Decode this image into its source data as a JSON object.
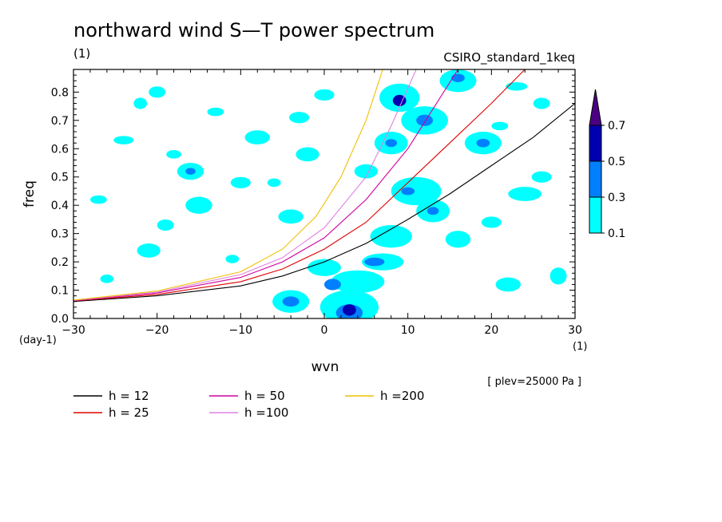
{
  "title": "northward wind S—T power spectrum",
  "subtitle_left": "(1)",
  "subtitle_right": "CSIRO_standard_1keq",
  "annotation": "[ plev=25000 Pa ]",
  "chart_data": {
    "type": "heatmap",
    "title": "northward wind S—T power spectrum",
    "xlabel": "wvn",
    "ylabel": "freq",
    "x_unit": "(1)",
    "y_unit": "(day-1)",
    "xlim": [
      -30,
      30
    ],
    "ylim": [
      0,
      0.88
    ],
    "x_ticks": [
      "-30",
      "-20",
      "-10",
      "0",
      "10",
      "20",
      "30"
    ],
    "y_ticks": [
      "0.0",
      "0.1",
      "0.2",
      "0.3",
      "0.4",
      "0.5",
      "0.6",
      "0.7",
      "0.8"
    ],
    "colorbar": {
      "levels": [
        "0.1",
        "0.3",
        "0.5",
        "0.7"
      ],
      "colors": [
        "#00ffff",
        "#0080ff",
        "#0000b0",
        "#4b0082"
      ]
    },
    "series": [
      {
        "name": "h = 12",
        "color": "#000000",
        "x": [
          -30,
          -20,
          -10,
          -5,
          0,
          5,
          10,
          15,
          20,
          25,
          30
        ],
        "y": [
          0.06,
          0.08,
          0.115,
          0.15,
          0.2,
          0.265,
          0.35,
          0.44,
          0.54,
          0.64,
          0.76
        ]
      },
      {
        "name": "h = 25",
        "color": "#e00000",
        "x": [
          -30,
          -20,
          -10,
          -5,
          0,
          5,
          10,
          15,
          20,
          24
        ],
        "y": [
          0.062,
          0.085,
          0.13,
          0.175,
          0.245,
          0.34,
          0.48,
          0.62,
          0.76,
          0.88
        ]
      },
      {
        "name": "h = 50",
        "color": "#d000a0",
        "x": [
          -30,
          -20,
          -10,
          -5,
          0,
          5,
          10,
          13,
          16
        ],
        "y": [
          0.063,
          0.09,
          0.145,
          0.2,
          0.285,
          0.42,
          0.6,
          0.74,
          0.88
        ]
      },
      {
        "name": "h =100",
        "color": "#e080e0",
        "x": [
          -30,
          -20,
          -10,
          -5,
          0,
          5,
          8,
          11
        ],
        "y": [
          0.064,
          0.093,
          0.155,
          0.215,
          0.32,
          0.5,
          0.68,
          0.88
        ]
      },
      {
        "name": "h =200",
        "color": "#f0c000",
        "x": [
          -30,
          -20,
          -10,
          -5,
          -1,
          2,
          5,
          7
        ],
        "y": [
          0.065,
          0.097,
          0.165,
          0.245,
          0.36,
          0.5,
          0.7,
          0.88
        ]
      }
    ],
    "contours": [
      {
        "level": 1,
        "x": 3,
        "y": 0.02,
        "rx": 1.6,
        "ry": 0.03
      },
      {
        "level": 1,
        "x": -4,
        "y": 0.06,
        "rx": 1.0,
        "ry": 0.018
      },
      {
        "level": 1,
        "x": 1,
        "y": 0.12,
        "rx": 1.0,
        "ry": 0.02
      },
      {
        "level": 1,
        "x": 6,
        "y": 0.2,
        "rx": 1.2,
        "ry": 0.015
      },
      {
        "level": 1,
        "x": 12,
        "y": 0.7,
        "rx": 1.0,
        "ry": 0.02
      },
      {
        "level": 1,
        "x": 19,
        "y": 0.62,
        "rx": 0.8,
        "ry": 0.015
      },
      {
        "level": 1,
        "x": -16,
        "y": 0.52,
        "rx": 0.6,
        "ry": 0.012
      },
      {
        "level": 1,
        "x": 10,
        "y": 0.45,
        "rx": 0.8,
        "ry": 0.014
      },
      {
        "level": 1,
        "x": 13,
        "y": 0.38,
        "rx": 0.7,
        "ry": 0.014
      },
      {
        "level": 1,
        "x": 8,
        "y": 0.62,
        "rx": 0.7,
        "ry": 0.014
      },
      {
        "level": 1,
        "x": 16,
        "y": 0.85,
        "rx": 0.8,
        "ry": 0.015
      },
      {
        "level": 2,
        "x": 3,
        "y": 0.03,
        "rx": 0.8,
        "ry": 0.02
      },
      {
        "level": 2,
        "x": 9,
        "y": 0.77,
        "rx": 0.8,
        "ry": 0.02
      },
      {
        "level": 0,
        "x": 3,
        "y": 0.04,
        "rx": 3.5,
        "ry": 0.06
      },
      {
        "level": 0,
        "x": -4,
        "y": 0.06,
        "rx": 2.2,
        "ry": 0.04
      },
      {
        "level": 0,
        "x": 4,
        "y": 0.13,
        "rx": 3.2,
        "ry": 0.04
      },
      {
        "level": 0,
        "x": 0,
        "y": 0.18,
        "rx": 2.0,
        "ry": 0.03
      },
      {
        "level": 0,
        "x": 7,
        "y": 0.2,
        "rx": 2.5,
        "ry": 0.03
      },
      {
        "level": 0,
        "x": 8,
        "y": 0.29,
        "rx": 2.5,
        "ry": 0.04
      },
      {
        "level": 0,
        "x": 11,
        "y": 0.45,
        "rx": 3.0,
        "ry": 0.05
      },
      {
        "level": 0,
        "x": 12,
        "y": 0.7,
        "rx": 2.8,
        "ry": 0.05
      },
      {
        "level": 0,
        "x": 9,
        "y": 0.78,
        "rx": 2.4,
        "ry": 0.05
      },
      {
        "level": 0,
        "x": 19,
        "y": 0.62,
        "rx": 2.2,
        "ry": 0.04
      },
      {
        "level": 0,
        "x": 16,
        "y": 0.84,
        "rx": 2.2,
        "ry": 0.04
      },
      {
        "level": 0,
        "x": 13,
        "y": 0.38,
        "rx": 2.0,
        "ry": 0.04
      },
      {
        "level": 0,
        "x": 8,
        "y": 0.62,
        "rx": 2.0,
        "ry": 0.04
      },
      {
        "level": 0,
        "x": -16,
        "y": 0.52,
        "rx": 1.6,
        "ry": 0.03
      },
      {
        "level": 0,
        "x": -15,
        "y": 0.4,
        "rx": 1.6,
        "ry": 0.03
      },
      {
        "level": 0,
        "x": -8,
        "y": 0.64,
        "rx": 1.5,
        "ry": 0.025
      },
      {
        "level": 0,
        "x": -4,
        "y": 0.36,
        "rx": 1.5,
        "ry": 0.025
      },
      {
        "level": 0,
        "x": 24,
        "y": 0.44,
        "rx": 2.0,
        "ry": 0.025
      },
      {
        "level": 0,
        "x": 22,
        "y": 0.12,
        "rx": 1.5,
        "ry": 0.025
      },
      {
        "level": 0,
        "x": 26,
        "y": 0.5,
        "rx": 1.2,
        "ry": 0.02
      },
      {
        "level": 0,
        "x": -21,
        "y": 0.24,
        "rx": 1.4,
        "ry": 0.025
      },
      {
        "level": 0,
        "x": -19,
        "y": 0.33,
        "rx": 1.0,
        "ry": 0.02
      },
      {
        "level": 0,
        "x": -24,
        "y": 0.63,
        "rx": 1.2,
        "ry": 0.015
      },
      {
        "level": 0,
        "x": -22,
        "y": 0.76,
        "rx": 0.8,
        "ry": 0.02
      },
      {
        "level": 0,
        "x": -20,
        "y": 0.8,
        "rx": 1.0,
        "ry": 0.02
      },
      {
        "level": 0,
        "x": -10,
        "y": 0.48,
        "rx": 1.2,
        "ry": 0.02
      },
      {
        "level": 0,
        "x": -3,
        "y": 0.71,
        "rx": 1.2,
        "ry": 0.02
      },
      {
        "level": 0,
        "x": 0,
        "y": 0.79,
        "rx": 1.2,
        "ry": 0.02
      },
      {
        "level": 0,
        "x": -13,
        "y": 0.73,
        "rx": 1.0,
        "ry": 0.015
      },
      {
        "level": 0,
        "x": -27,
        "y": 0.42,
        "rx": 1.0,
        "ry": 0.015
      },
      {
        "level": 0,
        "x": 16,
        "y": 0.28,
        "rx": 1.5,
        "ry": 0.03
      },
      {
        "level": 0,
        "x": 20,
        "y": 0.34,
        "rx": 1.2,
        "ry": 0.02
      },
      {
        "level": 0,
        "x": 28,
        "y": 0.15,
        "rx": 1.0,
        "ry": 0.03
      },
      {
        "level": 0,
        "x": 26,
        "y": 0.76,
        "rx": 1.0,
        "ry": 0.02
      },
      {
        "level": 0,
        "x": 23,
        "y": 0.82,
        "rx": 1.3,
        "ry": 0.015
      },
      {
        "level": 0,
        "x": -2,
        "y": 0.58,
        "rx": 1.4,
        "ry": 0.025
      },
      {
        "level": 0,
        "x": 5,
        "y": 0.52,
        "rx": 1.4,
        "ry": 0.025
      },
      {
        "level": 0,
        "x": -26,
        "y": 0.14,
        "rx": 0.8,
        "ry": 0.015
      },
      {
        "level": 0,
        "x": -11,
        "y": 0.21,
        "rx": 0.8,
        "ry": 0.015
      },
      {
        "level": 0,
        "x": 21,
        "y": 0.68,
        "rx": 1.0,
        "ry": 0.015
      },
      {
        "level": 0,
        "x": -18,
        "y": 0.58,
        "rx": 0.9,
        "ry": 0.015
      },
      {
        "level": 0,
        "x": -6,
        "y": 0.48,
        "rx": 0.8,
        "ry": 0.015
      }
    ]
  }
}
